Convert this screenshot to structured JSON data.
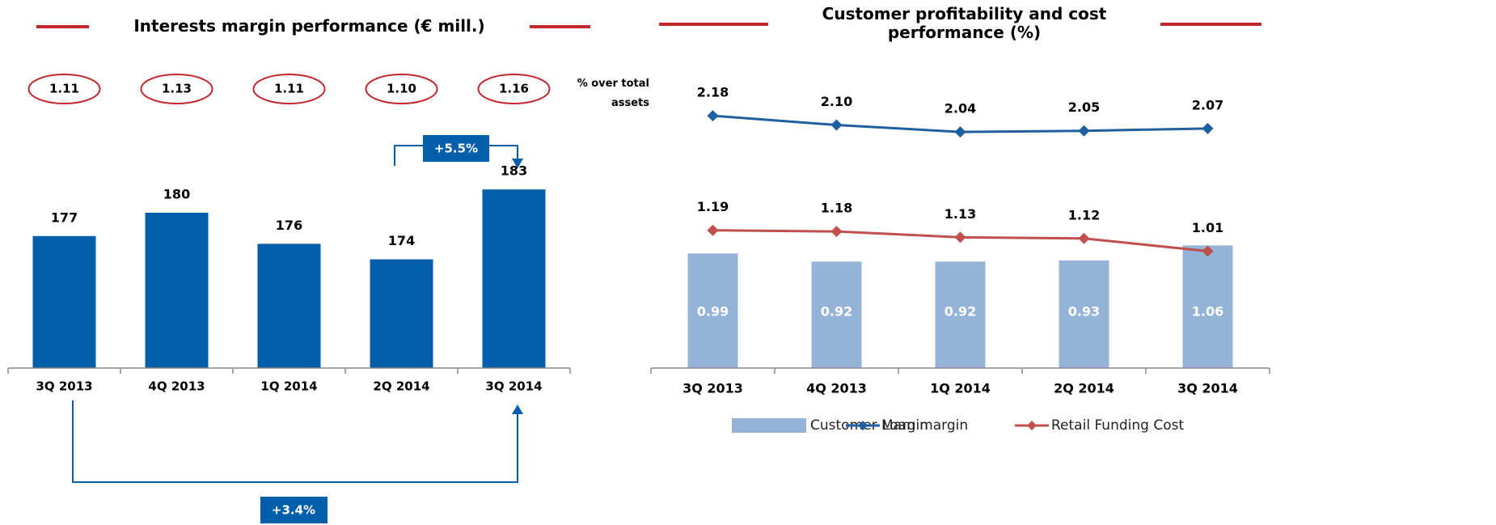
{
  "chart_data": [
    {
      "type": "bar",
      "title": "Interests margin performance (€ mill.)",
      "categories": [
        "3Q 2013",
        "4Q 2013",
        "1Q 2014",
        "2Q 2014",
        "3Q 2014"
      ],
      "values": [
        177,
        180,
        176,
        174,
        183
      ],
      "color": "#005eaa",
      "ylim": [
        160,
        200
      ],
      "ratios": [
        1.11,
        1.13,
        1.11,
        1.1,
        1.16
      ],
      "ratio_labels": [
        "1.11",
        "1.13",
        "1.11",
        "1.10",
        "1.16"
      ],
      "ratio_note": "% over total assets",
      "annotations": [
        "+5.5%",
        "+3.4%"
      ]
    },
    {
      "type": "combo",
      "title": "Customer profitability and cost performance (%)",
      "categories": [
        "3Q 2013",
        "4Q 2013",
        "1Q 2014",
        "2Q 2014",
        "3Q 2014"
      ],
      "ylim": [
        0,
        2.6
      ],
      "legend": "bottom",
      "series": [
        {
          "name": "Customer Margin",
          "type": "bar",
          "color": "#95b3d7",
          "values": [
            0.99,
            0.92,
            0.92,
            0.93,
            1.06
          ]
        },
        {
          "name": "Loan margin",
          "type": "line",
          "color": "#1f5fa0",
          "values": [
            2.18,
            2.1,
            2.04,
            2.05,
            2.07
          ],
          "value_labels": [
            "2.18",
            "2.10",
            "2.04",
            "2.05",
            "2.07"
          ]
        },
        {
          "name": "Retail Funding Cost",
          "type": "line",
          "color": "#c0504d",
          "values": [
            1.19,
            1.18,
            1.13,
            1.12,
            1.01
          ]
        }
      ]
    }
  ]
}
